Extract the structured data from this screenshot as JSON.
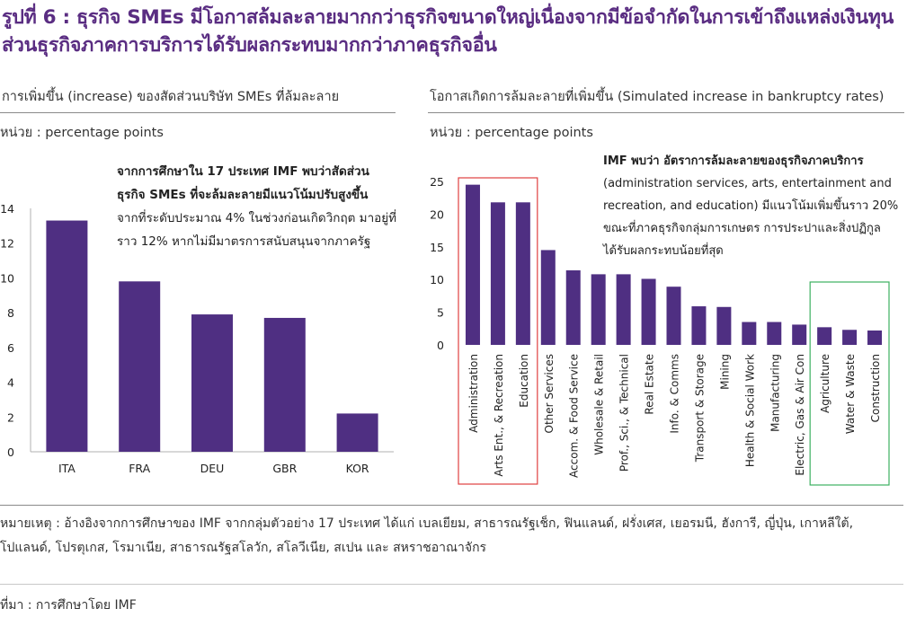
{
  "title": "รูปที่ 6 : ธุรกิจ SMEs มีโอกาสล้มละลายมากกว่าธุรกิจขนาดใหญ่เนื่องจากมีข้อจำกัดในการเข้าถึงแหล่งเงินทุน ส่วนธุรกิจภาคการบริการได้รับผลกระทบมากกว่าภาคธุรกิจอื่น",
  "left_panel": {
    "subtitle": "การเพิ่มขึ้น (increase) ของสัดส่วนบริษัท SMEs ที่ล้มละลาย",
    "unit": "หน่วย : percentage points",
    "annotation_bold": [
      "จากการศึกษาใน 17 ประเทศ IMF พบว่าสัดส่วน",
      "ธุรกิจ SMEs ที่จะล้มละลายมีแนวโน้มปรับสูงขึ้น"
    ],
    "annotation_normal": [
      "จากที่ระดับประมาณ 4% ในช่วงก่อนเกิดวิกฤต มาอยู่ที่",
      "ราว 12% หากไม่มีมาตรการสนับสนุนจากภาครัฐ"
    ]
  },
  "right_panel": {
    "subtitle": "โอกาสเกิดการล้มละลายที่เพิ่มขึ้น (Simulated increase in bankruptcy rates)",
    "unit": "หน่วย : percentage points",
    "annotation_bold": "IMF พบว่า อัตราการล้มละลายของธุรกิจภาคบริการ",
    "annotation_normal": [
      "(administration services, arts, entertainment and",
      "recreation, and education) มีแนวโน้มเพิ่มขึ้นราว 20%",
      "ขณะที่ภาคธุรกิจกลุ่มการเกษตร การประปาและสิ่งปฏิกูล",
      "ได้รับผลกระทบน้อยที่สุด"
    ]
  },
  "note": "หมายเหตุ : อ้างอิงจากการศึกษาของ IMF จากกลุ่มตัวอย่าง 17 ประเทศ ได้แก่ เบลเยียม, สาธารณรัฐเช็ก, ฟินแลนด์, ฝรั่งเศส, เยอรมนี, ฮังการี, ญี่ปุ่น, เกาหลีใต้, โปแลนด์, โปรตุเกส, โรมาเนีย, สาธารณรัฐสโลวัก, สโลวีเนีย, สเปน และ สหราชอาณาจักร",
  "source": "ที่มา : การศึกษาโดย IMF",
  "colors": {
    "bar": "#4f2f82",
    "title": "#5a2d82",
    "highlight_red": "#e04040",
    "highlight_green": "#3cb060"
  },
  "chart_data": [
    {
      "type": "bar",
      "categories": [
        "ITA",
        "FRA",
        "DEU",
        "GBR",
        "KOR"
      ],
      "values": [
        13.3,
        9.8,
        7.9,
        7.7,
        2.2
      ],
      "ylim": [
        0,
        14
      ],
      "yticks": [
        0,
        2,
        4,
        6,
        8,
        10,
        12,
        14
      ],
      "grid": false
    },
    {
      "type": "bar",
      "categories": [
        "Administration",
        "Arts Ent., & Recreation",
        "Education",
        "Other Services",
        "Accom. & Food Service",
        "Wholesale & Retail",
        "Prof., Sci., & Technical",
        "Real Estate",
        "Info. & Comms",
        "Transport & Storage",
        "Mining",
        "Health & Social Work",
        "Manufacturing",
        "Electric, Gas & Air Con",
        "Agriculture",
        "Water & Waste",
        "Construction"
      ],
      "values": [
        24.5,
        21.8,
        21.8,
        14.5,
        11.4,
        10.8,
        10.8,
        10.1,
        8.9,
        5.9,
        5.8,
        3.5,
        3.5,
        3.1,
        2.7,
        2.3,
        2.2
      ],
      "ylim": [
        0,
        25
      ],
      "yticks": [
        0,
        5,
        10,
        15,
        20,
        25
      ],
      "grid": false,
      "highlight_groups": [
        {
          "color": "red",
          "categories": [
            "Administration",
            "Arts Ent., & Recreation",
            "Education"
          ]
        },
        {
          "color": "green",
          "categories": [
            "Agriculture",
            "Water & Waste",
            "Construction"
          ]
        }
      ]
    }
  ]
}
